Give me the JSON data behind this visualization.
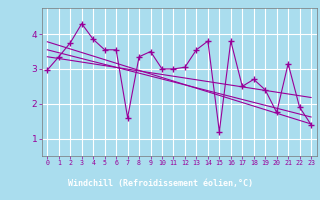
{
  "x_data": [
    0,
    1,
    2,
    3,
    4,
    5,
    6,
    7,
    8,
    9,
    10,
    11,
    12,
    13,
    14,
    15,
    16,
    17,
    18,
    19,
    20,
    21,
    22,
    23
  ],
  "y_data": [
    2.97,
    3.35,
    3.75,
    4.3,
    3.85,
    3.55,
    3.55,
    1.6,
    3.35,
    3.5,
    3.0,
    3.0,
    3.05,
    3.55,
    3.8,
    1.2,
    3.8,
    2.5,
    2.7,
    2.4,
    1.75,
    3.15,
    1.9,
    1.4
  ],
  "line_color": "#990099",
  "bg_color": "#aaddee",
  "grid_color": "#ffffff",
  "xlabel": "Windchill (Refroidissement éolien,°C)",
  "xlabel_bg": "#550055",
  "xlabel_color": "#ffffff",
  "ylabel_ticks": [
    1,
    2,
    3,
    4
  ],
  "xlim": [
    -0.5,
    23.5
  ],
  "ylim": [
    0.5,
    4.75
  ],
  "trend_lines": [
    {
      "x0": 0,
      "y0": 3.78,
      "x1": 23,
      "y1": 1.42
    },
    {
      "x0": 0,
      "y0": 3.55,
      "x1": 23,
      "y1": 1.62
    },
    {
      "x0": 0,
      "y0": 3.35,
      "x1": 23,
      "y1": 2.18
    }
  ],
  "figsize": [
    3.2,
    2.0
  ],
  "dpi": 100
}
